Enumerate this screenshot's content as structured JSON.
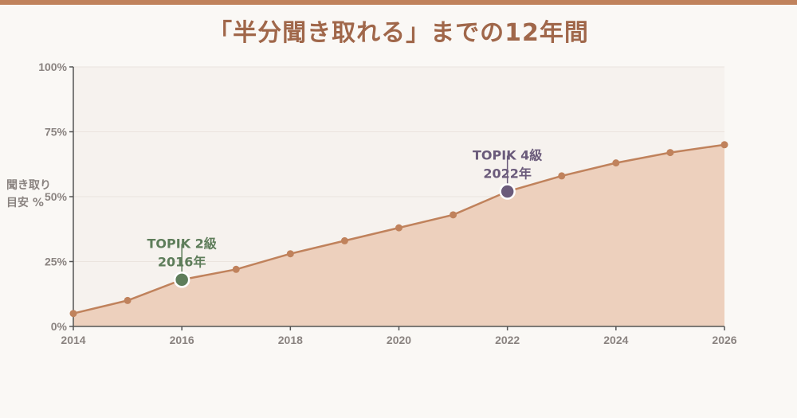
{
  "title": "「半分聞き取れる」までの12年間",
  "colors": {
    "top_bar": "#c0825c",
    "title": "#a0674a",
    "line": "#c0825c",
    "area": "#edd0bd",
    "plot_bg": "#f6f2ee",
    "milestone_2016": "#5e7d5a",
    "milestone_2022": "#6b5b7b"
  },
  "chart_data": {
    "type": "area",
    "title": "「半分聞き取れる」までの12年間",
    "ylabel_lines": [
      "聞き取り",
      "目安 %"
    ],
    "x": [
      2014,
      2015,
      2016,
      2017,
      2018,
      2019,
      2020,
      2021,
      2022,
      2023,
      2024,
      2025,
      2026
    ],
    "series": [
      {
        "values": [
          5,
          10,
          18,
          22,
          28,
          33,
          38,
          43,
          52,
          58,
          63,
          67,
          70
        ]
      }
    ],
    "xlim": [
      2014,
      2026
    ],
    "ylim": [
      0,
      100
    ],
    "x_ticks": [
      "2014",
      "2016",
      "2018",
      "2020",
      "2022",
      "2024",
      "2026"
    ],
    "y_ticks": [
      "0%",
      "25%",
      "50%",
      "75%",
      "100%"
    ],
    "grid": true,
    "annotations": [
      {
        "x": 2016,
        "y": 18,
        "line1": "TOPIK 2級",
        "line2": "2016年",
        "color": "#5e7d5a"
      },
      {
        "x": 2022,
        "y": 52,
        "line1": "TOPIK 4級",
        "line2": "2022年",
        "color": "#6b5b7b"
      }
    ]
  }
}
